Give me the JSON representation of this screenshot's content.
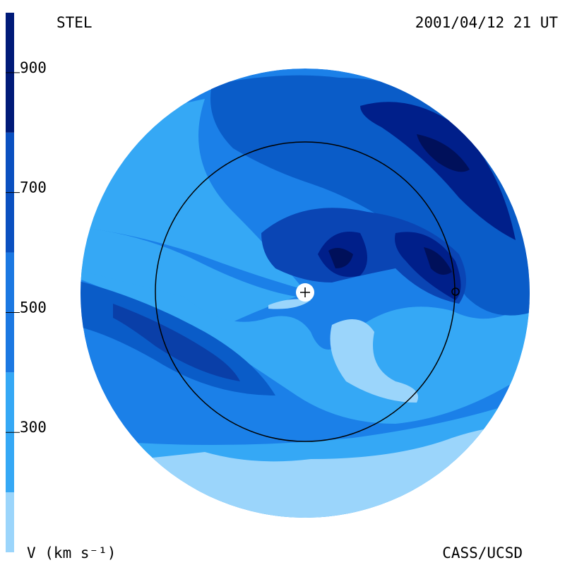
{
  "chart_data": {
    "type": "colorbar",
    "title": "STEL",
    "subtitle": "2001/04/12 21 UT",
    "axis_label": "V (km s⁻¹)",
    "credit": "CASS/UCSD",
    "ylim": [
      100,
      1000
    ],
    "yticks": [
      300,
      500,
      700,
      900
    ],
    "bins": [
      100,
      200,
      400,
      600,
      800,
      1000
    ],
    "colors": [
      "#9bd5fb",
      "#35a8f5",
      "#1b78e2",
      "#0a50c0",
      "#001a78"
    ]
  }
}
